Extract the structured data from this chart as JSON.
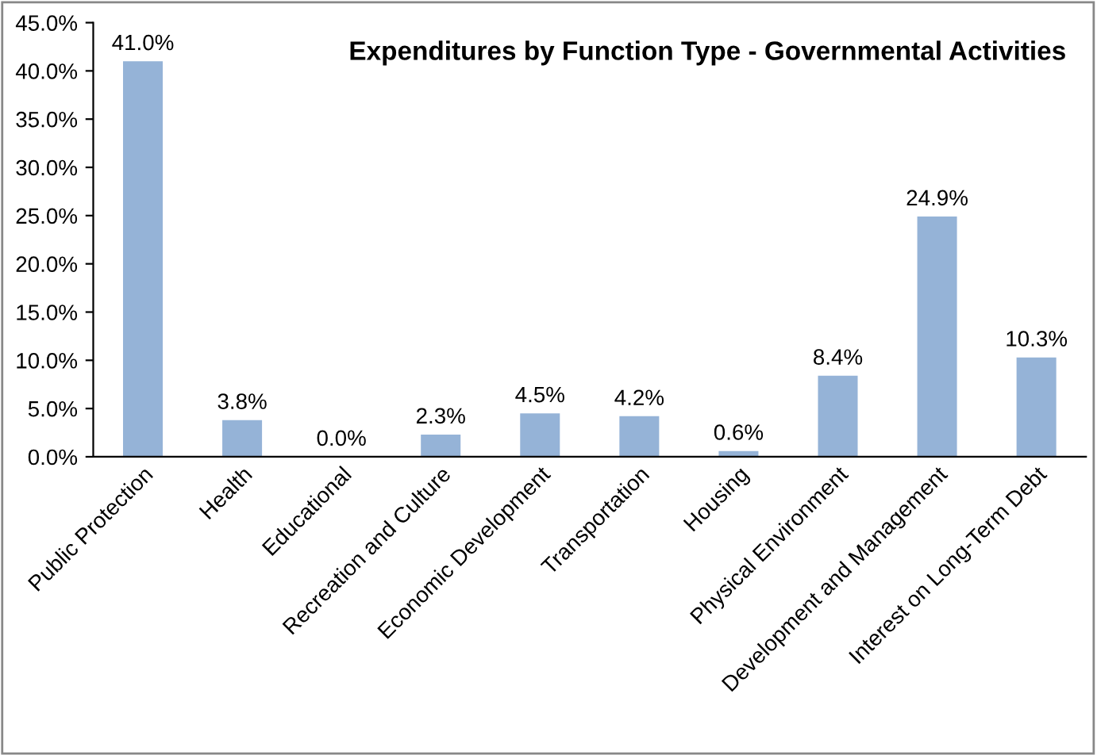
{
  "chart_data": {
    "type": "bar",
    "title": "Expenditures by Function Type - Governmental Activities",
    "categories": [
      "Public Protection",
      "Health",
      "Educational",
      "Recreation and Culture",
      "Economic Development",
      "Transportation",
      "Housing",
      "Physical Environment",
      "Development and Management",
      "Interest on Long-Term Debt"
    ],
    "values": [
      41.0,
      3.8,
      0.0,
      2.3,
      4.5,
      4.2,
      0.6,
      8.4,
      24.9,
      10.3
    ],
    "value_labels": [
      "41.0%",
      "3.8%",
      "0.0%",
      "2.3%",
      "4.5%",
      "4.2%",
      "0.6%",
      "8.4%",
      "24.9%",
      "10.3%"
    ],
    "color": "#95b3d7",
    "ylim": [
      0,
      45
    ],
    "yticks": [
      {
        "value": 0,
        "label": "0.0%"
      },
      {
        "value": 5,
        "label": "5.0%"
      },
      {
        "value": 10,
        "label": "10.0%"
      },
      {
        "value": 15,
        "label": "15.0%"
      },
      {
        "value": 20,
        "label": "20.0%"
      },
      {
        "value": 25,
        "label": "25.0%"
      },
      {
        "value": 30,
        "label": "30.0%"
      },
      {
        "value": 35,
        "label": "35.0%"
      },
      {
        "value": 40,
        "label": "40.0%"
      },
      {
        "value": 45,
        "label": "45.0%"
      }
    ],
    "grid": false,
    "legend": false
  }
}
